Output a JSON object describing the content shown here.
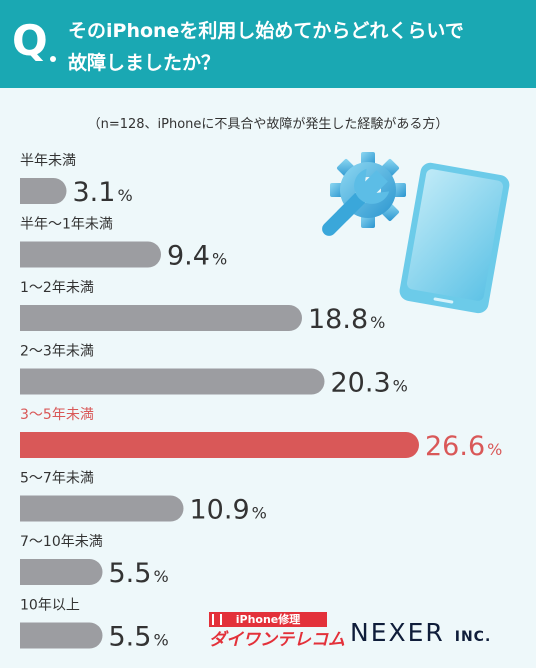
{
  "header": {
    "q_letter": "Q",
    "title_line1": "そのiPhoneを利用し始めてからどれくらいで",
    "title_line2": "故障しましたか？"
  },
  "note": "（n=128、iPhoneに不具合や故障が発生した経験がある方）",
  "chart_data": {
    "type": "bar",
    "orientation": "horizontal",
    "categories": [
      "半年未満",
      "半年〜1年未満",
      "1〜2年未満",
      "2〜3年未満",
      "3〜5年未満",
      "5〜7年未満",
      "7〜10年未満",
      "10年以上"
    ],
    "values": [
      3.1,
      9.4,
      18.8,
      20.3,
      26.6,
      10.9,
      5.5,
      5.5
    ],
    "value_labels": [
      "3.1",
      "9.4",
      "18.8",
      "20.3",
      "26.6",
      "10.9",
      "5.5",
      "5.5"
    ],
    "unit": "%",
    "highlight_category": "3〜5年未満",
    "bar_color": "#9c9da1",
    "highlight_color": "#d95858",
    "label_color": "#333333"
  },
  "logos": {
    "repair_top": "iPhone修理",
    "repair_bottom": "ダイワンテレコム",
    "company": "NEXER",
    "company_suffix": "INC."
  },
  "colors": {
    "header_bg": "#1aa8b3",
    "background": "#eef8fa"
  },
  "icons": [
    "gear-wrench-icon",
    "smartphone-icon"
  ]
}
